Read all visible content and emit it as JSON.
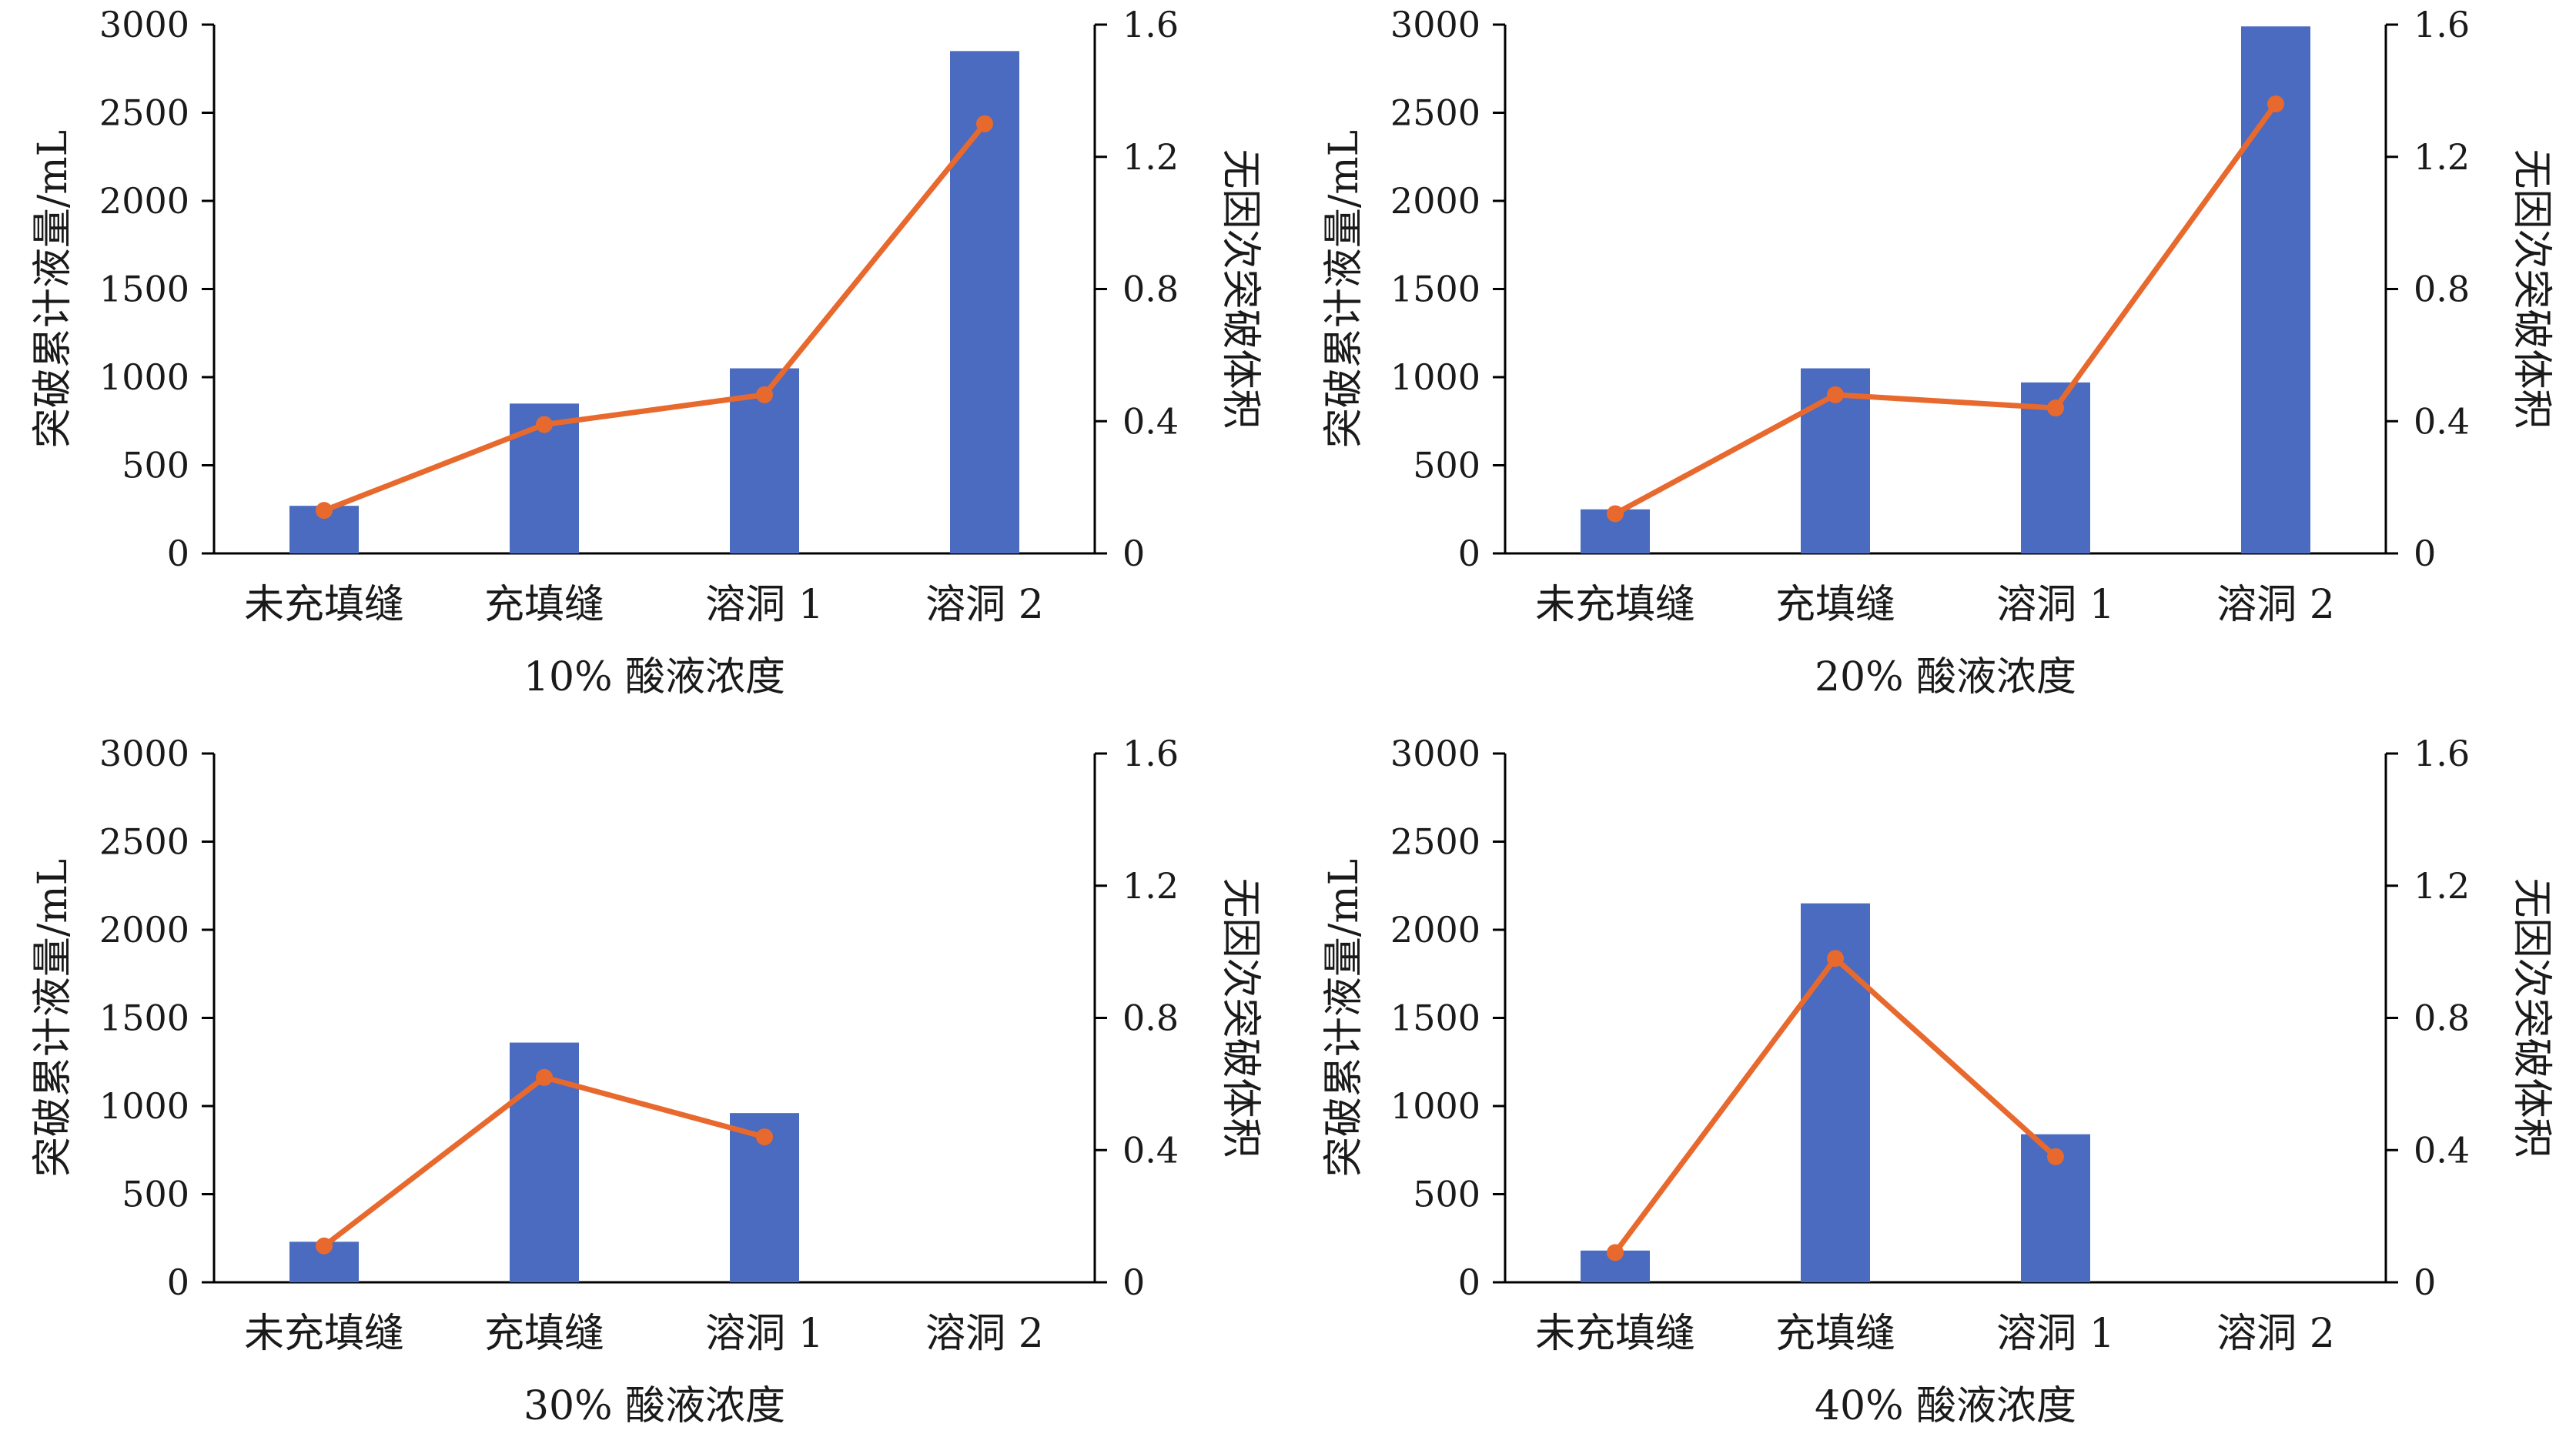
{
  "colors": {
    "bar": "#4a6bbf",
    "line": "#e8692e",
    "axis": "#000000"
  },
  "chart_data": [
    {
      "type": "bar",
      "xlabel": "10% 酸液浓度",
      "ylabel": "突破累计液量/mL",
      "y2label": "无因次突破体积",
      "categories": [
        "未充填缝",
        "充填缝",
        "溶洞 1",
        "溶洞 2"
      ],
      "ylim": [
        0,
        3000
      ],
      "y2lim": [
        0,
        1.6
      ],
      "yticks": [
        "0",
        "500",
        "1000",
        "1500",
        "2000",
        "2500",
        "3000"
      ],
      "y2ticks": [
        "0",
        "0.4",
        "0.8",
        "1.2",
        "1.6"
      ],
      "series": [
        {
          "kind": "bar",
          "axis": "left",
          "values": [
            270,
            850,
            1050,
            2850
          ]
        },
        {
          "kind": "line",
          "axis": "right",
          "values": [
            0.13,
            0.39,
            0.48,
            1.3
          ]
        }
      ]
    },
    {
      "type": "bar",
      "xlabel": "20% 酸液浓度",
      "ylabel": "突破累计液量/mL",
      "y2label": "无因次突破体积",
      "categories": [
        "未充填缝",
        "充填缝",
        "溶洞 1",
        "溶洞 2"
      ],
      "ylim": [
        0,
        3000
      ],
      "y2lim": [
        0,
        1.6
      ],
      "yticks": [
        "0",
        "500",
        "1000",
        "1500",
        "2000",
        "2500",
        "3000"
      ],
      "y2ticks": [
        "0",
        "0.4",
        "0.8",
        "1.2",
        "1.6"
      ],
      "series": [
        {
          "kind": "bar",
          "axis": "left",
          "values": [
            250,
            1050,
            970,
            2990
          ]
        },
        {
          "kind": "line",
          "axis": "right",
          "values": [
            0.12,
            0.48,
            0.44,
            1.36
          ]
        }
      ]
    },
    {
      "type": "bar",
      "xlabel": "30% 酸液浓度",
      "ylabel": "突破累计液量/mL",
      "y2label": "无因次突破体积",
      "categories": [
        "未充填缝",
        "充填缝",
        "溶洞 1",
        "溶洞 2"
      ],
      "ylim": [
        0,
        3000
      ],
      "y2lim": [
        0,
        1.6
      ],
      "yticks": [
        "0",
        "500",
        "1000",
        "1500",
        "2000",
        "2500",
        "3000"
      ],
      "y2ticks": [
        "0",
        "0.4",
        "0.8",
        "1.2",
        "1.6"
      ],
      "series": [
        {
          "kind": "bar",
          "axis": "left",
          "values": [
            230,
            1360,
            960,
            null
          ]
        },
        {
          "kind": "line",
          "axis": "right",
          "values": [
            0.11,
            0.62,
            0.44,
            null
          ]
        }
      ]
    },
    {
      "type": "bar",
      "xlabel": "40% 酸液浓度",
      "ylabel": "突破累计液量/mL",
      "y2label": "无因次突破体积",
      "categories": [
        "未充填缝",
        "充填缝",
        "溶洞 1",
        "溶洞 2"
      ],
      "ylim": [
        0,
        3000
      ],
      "y2lim": [
        0,
        1.6
      ],
      "yticks": [
        "0",
        "500",
        "1000",
        "1500",
        "2000",
        "2500",
        "3000"
      ],
      "y2ticks": [
        "0",
        "0.4",
        "0.8",
        "1.2",
        "1.6"
      ],
      "series": [
        {
          "kind": "bar",
          "axis": "left",
          "values": [
            180,
            2150,
            840,
            null
          ]
        },
        {
          "kind": "line",
          "axis": "right",
          "values": [
            0.09,
            0.98,
            0.38,
            null
          ]
        }
      ]
    }
  ]
}
